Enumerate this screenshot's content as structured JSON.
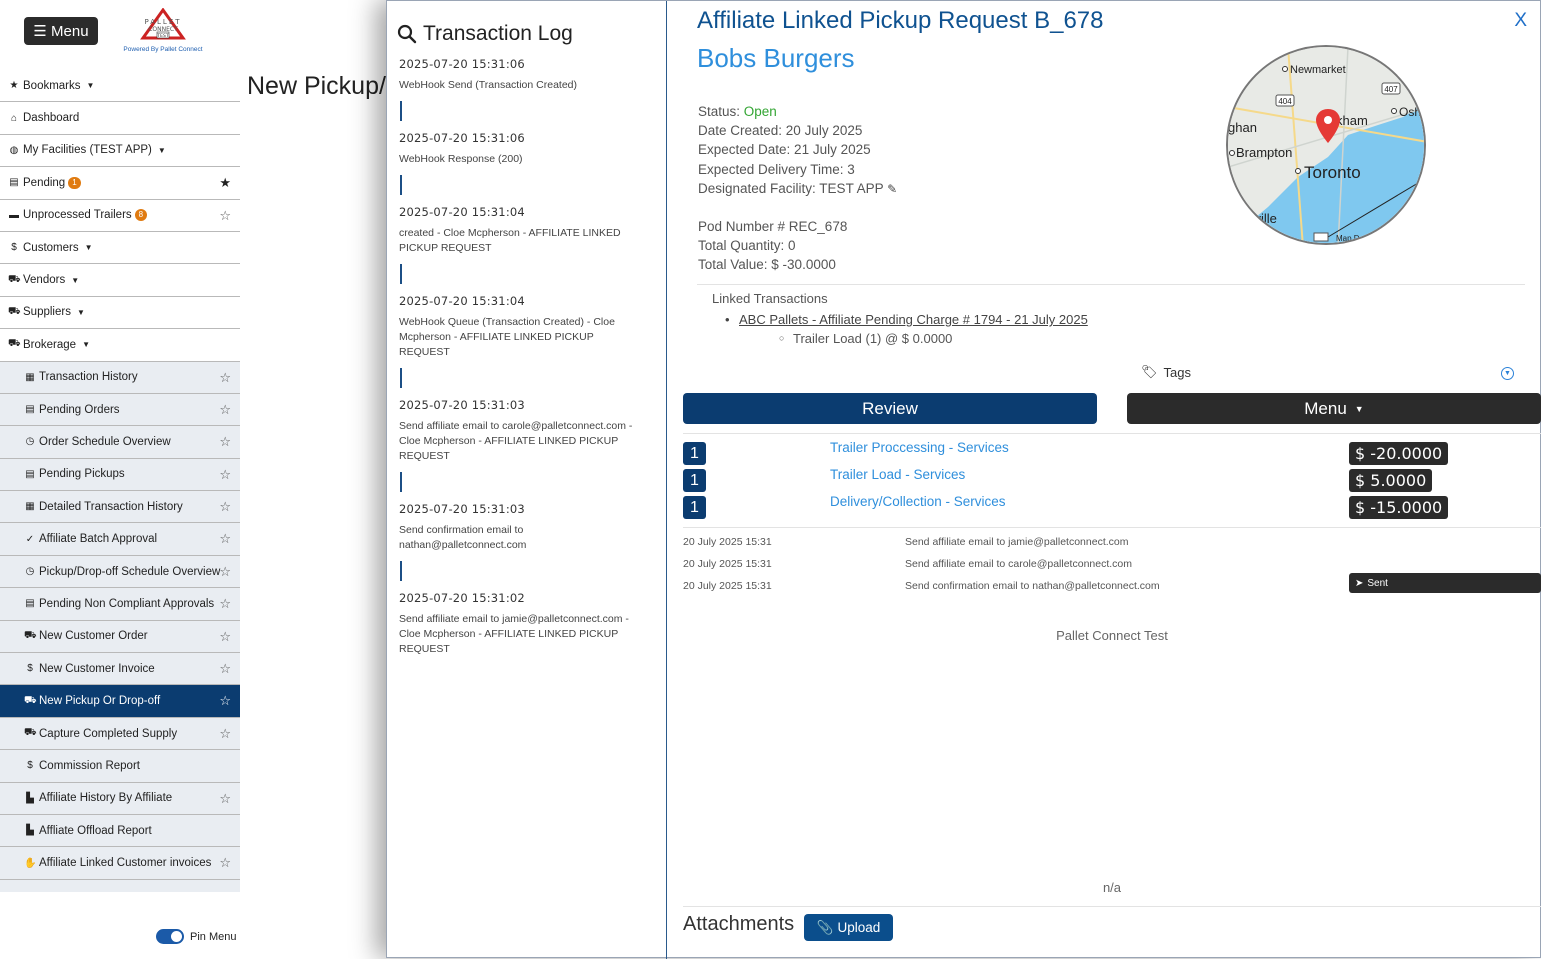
{
  "sidebar": {
    "menu_label": "☰ Menu",
    "logo_text": "PALLET CONNECT",
    "logo_sub": "TEST",
    "powered_by": "Powered By Pallet Connect",
    "items": [
      {
        "label": "Bookmarks",
        "icon": "star-icon"
      },
      {
        "label": "Dashboard",
        "icon": "home-icon"
      },
      {
        "label": "My Facilities  (TEST APP)",
        "icon": "globe-icon"
      },
      {
        "label": "Pending",
        "badge": "1",
        "icon": "clipboard-icon"
      },
      {
        "label": "Unprocessed Trailers",
        "badge": "8",
        "icon": "trailer-icon"
      },
      {
        "label": "Customers",
        "icon": "dollar-icon"
      },
      {
        "label": "Vendors",
        "icon": "truck-icon"
      },
      {
        "label": "Suppliers",
        "icon": "truck-loading-icon"
      },
      {
        "label": "Brokerage",
        "icon": "truck-icon"
      },
      {
        "label": "Transaction History",
        "icon": "table-icon"
      },
      {
        "label": "Pending Orders",
        "icon": "clipboard-icon"
      },
      {
        "label": "Order Schedule Overview",
        "icon": "clock-icon"
      },
      {
        "label": "Pending Pickups",
        "icon": "clipboard-icon"
      },
      {
        "label": "Detailed Transaction History",
        "icon": "table-icon"
      },
      {
        "label": "Affiliate Batch Approval",
        "icon": "check-icon"
      },
      {
        "label": "Pickup/Drop-off Schedule Overview",
        "icon": "clock-icon"
      },
      {
        "label": "Pending Non Compliant Approvals",
        "icon": "clipboard-icon"
      },
      {
        "label": "New Customer Order",
        "icon": "dolly-icon"
      },
      {
        "label": "New Customer Invoice",
        "icon": "dollar-icon"
      },
      {
        "label": "New Pickup Or Drop-off",
        "icon": "dolly-icon"
      },
      {
        "label": "Capture Completed Supply",
        "icon": "pallet-icon"
      },
      {
        "label": "Commission Report",
        "icon": "dollar-icon"
      },
      {
        "label": "Affiliate History By Affiliate",
        "icon": "chart-icon"
      },
      {
        "label": "Affliate Offload Report",
        "icon": "chart-icon"
      },
      {
        "label": "Affiliate Linked Customer invoices",
        "icon": "hand-icon"
      }
    ],
    "pin_menu": "Pin Menu"
  },
  "page": {
    "title": "New Pickup/Drop-off"
  },
  "transaction_log": {
    "title": "Transaction Log",
    "entries": [
      {
        "time": "2025-07-20 15:31:06",
        "desc": "WebHook Send (Transaction Created)"
      },
      {
        "time": "2025-07-20 15:31:06",
        "desc": "WebHook Response (200)"
      },
      {
        "time": "2025-07-20 15:31:04",
        "desc": "created - Cloe Mcpherson - AFFILIATE LINKED PICKUP REQUEST"
      },
      {
        "time": "2025-07-20 15:31:04",
        "desc": "WebHook Queue (Transaction Created) - Cloe Mcpherson - AFFILIATE LINKED PICKUP REQUEST"
      },
      {
        "time": "2025-07-20 15:31:03",
        "desc": "Send affiliate email to carole@palletconnect.com - Cloe Mcpherson - AFFILIATE LINKED PICKUP REQUEST"
      },
      {
        "time": "2025-07-20 15:31:03",
        "desc": "Send confirmation email to nathan@palletconnect.com"
      },
      {
        "time": "2025-07-20 15:31:02",
        "desc": "Send affiliate email to jamie@palletconnect.com - Cloe Mcpherson - AFFILIATE LINKED PICKUP REQUEST"
      }
    ]
  },
  "request": {
    "close_label": "X",
    "title": "Affiliate Linked Pickup Request B_678",
    "customer": "Bobs Burgers",
    "status_label": "Status: ",
    "status_value": "Open",
    "date_created": "Date Created: 20 July 2025",
    "expected_date": "Expected Date: 21 July 2025",
    "expected_delivery_time": "Expected Delivery Time: 3",
    "designated_facility": "Designated Facility: TEST APP",
    "pod_number": "Pod Number # REC_678",
    "total_quantity": "Total Quantity: 0",
    "total_value": "Total Value: $ -30.0000",
    "linked_title": "Linked Transactions",
    "linked_link": "ABC Pallets - Affiliate Pending Charge # 1794 - 21 July 2025",
    "linked_sub": "Trailer Load (1) @ $ 0.0000",
    "tags_label": "Tags",
    "review_label": "Review",
    "menu_label": "Menu",
    "line_items": [
      {
        "qty": "1",
        "service": "Trailer Proccessing - Services",
        "price": "$ -20.0000"
      },
      {
        "qty": "1",
        "service": "Trailer Load - Services",
        "price": "$ 5.0000"
      },
      {
        "qty": "1",
        "service": "Delivery/Collection - Services",
        "price": "$ -15.0000"
      }
    ],
    "emails": [
      {
        "date": "20 July 2025 15:31",
        "msg": "Send affiliate email to jamie@palletconnect.com"
      },
      {
        "date": "20 July 2025 15:31",
        "msg": "Send affiliate email to carole@palletconnect.com"
      },
      {
        "date": "20 July 2025 15:31",
        "msg": "Send confirmation email to nathan@palletconnect.com",
        "badge": "Sent"
      }
    ],
    "company": "Pallet Connect Test",
    "na": "n/a",
    "attachments_label": "Attachments",
    "upload_label": "Upload"
  },
  "map": {
    "labels": [
      "Newmarket",
      "404",
      "407",
      "Osh",
      "ghan",
      "kham",
      "Brampton",
      "Toronto",
      "kville",
      "Map Da"
    ],
    "water_color": "#7fc8ef",
    "land_color": "#e8eae6"
  },
  "colors": {
    "navy": "#0b3c70",
    "link_blue": "#2f8fdc",
    "status_green": "#33a533",
    "badge_orange": "#e07b11"
  }
}
